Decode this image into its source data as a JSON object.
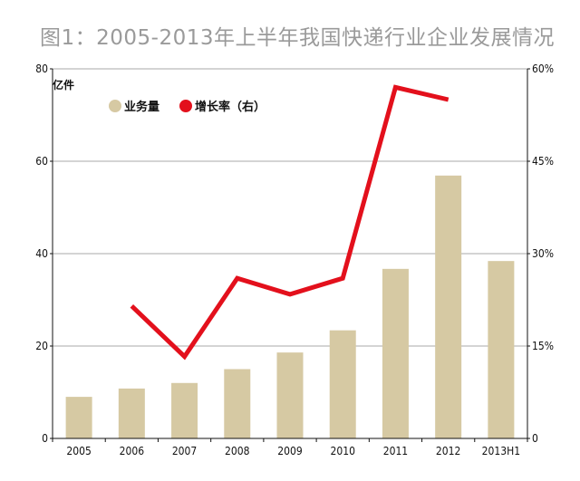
{
  "chart_data": {
    "type": "bar+line",
    "title": "图1：2005-2013年上半年我国快递行业企业发展情况",
    "y_left_unit": "亿件",
    "categories": [
      "2005",
      "2006",
      "2007",
      "2008",
      "2009",
      "2010",
      "2011",
      "2012",
      "2013H1"
    ],
    "y_left_ticks": [
      "0",
      "20",
      "40",
      "60",
      "80"
    ],
    "y_right_ticks": [
      "0",
      "15%",
      "30%",
      "45%",
      "60%"
    ],
    "y_left_lim": [
      0,
      80
    ],
    "y_right_lim": [
      0,
      60
    ],
    "series": [
      {
        "name": "业务量",
        "type": "bar",
        "axis": "left",
        "color": "#d6c9a3",
        "values": [
          9.0,
          10.8,
          12.0,
          15.0,
          18.6,
          23.4,
          36.7,
          56.9,
          38.4
        ]
      },
      {
        "name": "增长率（右）",
        "type": "line",
        "axis": "right",
        "color": "#e3101c",
        "values": [
          null,
          21.5,
          13.3,
          26.0,
          23.4,
          26.0,
          57.0,
          55.0,
          null
        ]
      }
    ],
    "legend": [
      "业务量",
      "增长率（右）"
    ],
    "grid": true
  }
}
